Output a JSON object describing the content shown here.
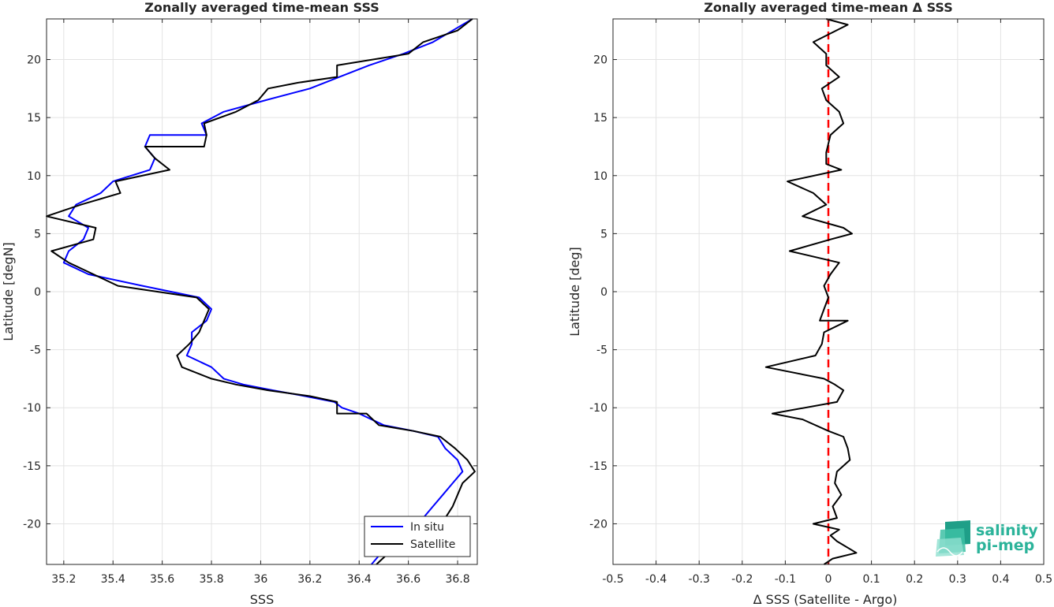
{
  "chart_data": [
    {
      "type": "line",
      "title": "Zonally averaged time-mean SSS",
      "xlabel": "SSS",
      "ylabel": "Latitude [degN]",
      "xlim": [
        35.13,
        36.88
      ],
      "ylim": [
        -23.5,
        23.5
      ],
      "xticks": [
        35.2,
        35.4,
        35.6,
        35.8,
        36,
        36.2,
        36.4,
        36.6,
        36.8
      ],
      "yticks": [
        -20,
        -15,
        -10,
        -5,
        0,
        5,
        10,
        15,
        20
      ],
      "grid": true,
      "legend_position": "bottom-right",
      "series": [
        {
          "name": "In situ",
          "color": "#0000ff",
          "x": [
            36.45,
            36.53,
            36.6,
            36.66,
            36.7,
            36.74,
            36.78,
            36.82,
            36.8,
            36.75,
            36.72,
            36.62,
            36.5,
            36.4,
            36.33,
            36.3,
            36.18,
            36.05,
            35.93,
            35.85,
            35.8,
            35.7,
            35.72,
            35.72,
            35.78,
            35.8,
            35.75,
            35.52,
            35.3,
            35.2,
            35.22,
            35.28,
            35.3,
            35.22,
            35.25,
            35.35,
            35.4,
            35.55,
            35.57,
            35.53,
            35.55,
            35.78,
            35.76,
            35.85,
            36.02,
            36.2,
            36.32,
            36.32,
            36.44,
            36.58,
            36.7,
            36.78,
            36.86
          ],
          "y": [
            -23.5,
            -21.5,
            -20.5,
            -19.5,
            -18.5,
            -17.5,
            -16.5,
            -15.5,
            -14.5,
            -13.5,
            -12.5,
            -12,
            -11.5,
            -10.5,
            -10,
            -9.5,
            -9,
            -8.5,
            -8,
            -7.5,
            -6.5,
            -5.5,
            -4.5,
            -3.5,
            -2.5,
            -1.5,
            -0.5,
            0.5,
            1.5,
            2.5,
            3.5,
            4.5,
            5.5,
            6.5,
            7.5,
            8.5,
            9.5,
            10.5,
            11.5,
            12.5,
            13.5,
            13.5,
            14.5,
            15.5,
            16.5,
            17.5,
            18.5,
            18.5,
            19.5,
            20.5,
            21.5,
            22.5,
            23.5
          ]
        },
        {
          "name": "Satellite",
          "color": "#000000",
          "x": [
            36.47,
            36.57,
            36.69,
            36.75,
            36.78,
            36.8,
            36.82,
            36.87,
            36.84,
            36.79,
            36.73,
            36.62,
            36.48,
            36.43,
            36.31,
            36.31,
            36.2,
            36.03,
            35.9,
            35.8,
            35.68,
            35.66,
            35.71,
            35.75,
            35.77,
            35.79,
            35.74,
            35.42,
            35.32,
            35.22,
            35.15,
            35.32,
            35.33,
            35.13,
            35.27,
            35.43,
            35.41,
            35.63,
            35.57,
            35.53,
            35.77,
            35.78,
            35.77,
            35.9,
            35.99,
            36.03,
            36.15,
            36.31,
            36.31,
            36.6,
            36.66,
            36.8,
            36.86
          ],
          "y": [
            -23.5,
            -21.5,
            -20.5,
            -19.5,
            -18.5,
            -17.5,
            -16.5,
            -15.5,
            -14.5,
            -13.5,
            -12.5,
            -12,
            -11.5,
            -10.5,
            -10.5,
            -9.5,
            -9,
            -8.5,
            -8,
            -7.5,
            -6.5,
            -5.5,
            -4.5,
            -3.5,
            -2.5,
            -1.5,
            -0.5,
            0.5,
            1.5,
            2.5,
            3.5,
            4.5,
            5.5,
            6.5,
            7.5,
            8.5,
            9.5,
            10.5,
            11.5,
            12.5,
            12.5,
            13.5,
            14.5,
            15.5,
            16.5,
            17.5,
            18,
            18.5,
            19.5,
            20.5,
            21.5,
            22.5,
            23.5
          ]
        }
      ]
    },
    {
      "type": "line",
      "title": "Zonally averaged time-mean Δ SSS",
      "xlabel": "Δ SSS (Satellite - Argo)",
      "ylabel": "Latitude [deg]",
      "xlim": [
        -0.5,
        0.5
      ],
      "ylim": [
        -23.5,
        23.5
      ],
      "xticks": [
        -0.5,
        -0.4,
        -0.3,
        -0.2,
        -0.1,
        0,
        0.1,
        0.2,
        0.3,
        0.4,
        0.5
      ],
      "yticks": [
        -20,
        -15,
        -10,
        -5,
        0,
        5,
        10,
        15,
        20
      ],
      "grid": true,
      "series": [
        {
          "color": "#000000",
          "x": [
            -0.01,
            0.01,
            0.065,
            0.02,
            0.005,
            0.025,
            -0.035,
            0.02,
            0.01,
            0.03,
            0.015,
            0.02,
            0.05,
            0.045,
            0.035,
            0.0,
            -0.06,
            -0.13,
            0.02,
            0.035,
            0.015,
            -0.01,
            -0.145,
            -0.03,
            -0.015,
            -0.01,
            0.045,
            -0.02,
            -0.01,
            0.0,
            -0.01,
            0.005,
            0.025,
            -0.09,
            0.005,
            0.055,
            0.035,
            -0.06,
            -0.005,
            -0.035,
            -0.095,
            0.03,
            -0.005,
            -0.005,
            0.005,
            0.035,
            0.025,
            -0.005,
            -0.015,
            0.025,
            -0.005,
            -0.005,
            -0.035,
            0.045,
            -0.005
          ],
          "y": [
            -23.5,
            -23,
            -22.5,
            -21.5,
            -21,
            -20.5,
            -20,
            -19.5,
            -18.5,
            -17.5,
            -16.5,
            -15.5,
            -14.5,
            -13.5,
            -12.5,
            -12,
            -11,
            -10.5,
            -9.5,
            -8.5,
            -8,
            -7.5,
            -6.5,
            -5.5,
            -4.5,
            -3.5,
            -2.5,
            -2.5,
            -1.5,
            -0.5,
            0.5,
            1.5,
            2.5,
            3.5,
            4.5,
            5,
            5.5,
            6.5,
            7.5,
            8.5,
            9.5,
            10.5,
            11,
            12,
            13.5,
            14.5,
            15.5,
            16.5,
            17.5,
            18.5,
            19.5,
            20.5,
            21.5,
            23,
            23.5
          ]
        }
      ],
      "reference_line": {
        "x": 0,
        "color": "#ff0000",
        "style": "dashed"
      }
    }
  ],
  "logo": {
    "line1": "salinity",
    "line2": "pi-mep"
  }
}
